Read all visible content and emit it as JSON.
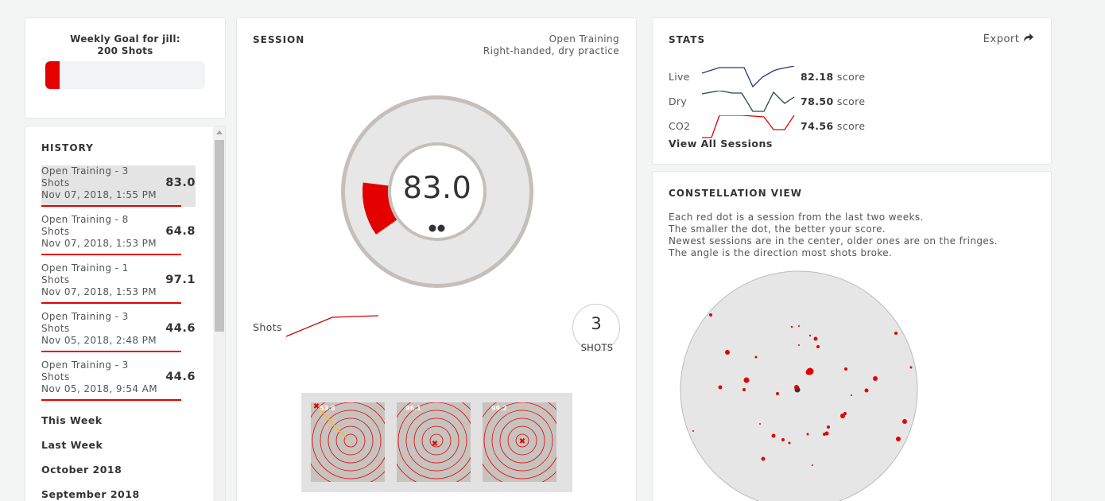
{
  "goal": {
    "title_line1": "Weekly Goal for jill:",
    "title_line2": "200 Shots",
    "progress_fraction": 0.09,
    "bar_color": "#e50000"
  },
  "history": {
    "title": "HISTORY",
    "items": [
      {
        "name": "Open Training - 3 Shots",
        "date": "Nov 07, 2018, 1:55 PM",
        "score": "83.0",
        "selected": true
      },
      {
        "name": "Open Training - 8 Shots",
        "date": "Nov 07, 2018, 1:53 PM",
        "score": "64.8",
        "selected": false
      },
      {
        "name": "Open Training - 1 Shots",
        "date": "Nov 07, 2018, 1:53 PM",
        "score": "97.1",
        "selected": false
      },
      {
        "name": "Open Training - 3 Shots",
        "date": "Nov 05, 2018, 2:48 PM",
        "score": "44.6",
        "selected": false
      },
      {
        "name": "Open Training - 3 Shots",
        "date": "Nov 05, 2018, 9:54 AM",
        "score": "44.6",
        "selected": false
      }
    ],
    "groups": [
      "This Week",
      "Last Week",
      "October 2018",
      "September 2018"
    ]
  },
  "session": {
    "title": "SESSION",
    "meta_line1": "Open Training",
    "meta_line2": "Right-handed, dry practice",
    "score": "83.0",
    "score_arc_color": "#e50000",
    "shots_label": "Shots",
    "shot_count": "3",
    "shot_count_label": "SHOTS",
    "targets": [
      {
        "score": "53.8",
        "icon": "target-icon"
      },
      {
        "score": "96.1",
        "icon": "target-icon"
      },
      {
        "score": "99.2",
        "icon": "target-icon"
      }
    ]
  },
  "stats": {
    "title": "STATS",
    "export_label": "Export",
    "export_icon": "share-arrow-icon",
    "rows": [
      {
        "label": "Live",
        "score": "82.18",
        "unit": "score",
        "color": "#1a3a8a"
      },
      {
        "label": "Dry",
        "score": "78.50",
        "unit": "score",
        "color": "#1e4d3c"
      },
      {
        "label": "CO2",
        "score": "74.56",
        "unit": "score",
        "color": "#e50000"
      }
    ],
    "view_all": "View All Sessions"
  },
  "constellation": {
    "title": "CONSTELLATION VIEW",
    "desc": [
      "Each red dot is a session from the last two weeks.",
      "The smaller the dot, the better your score.",
      "Newest sessions are in the center, older ones are on the fringes.",
      "The angle is the direction most shots broke."
    ]
  }
}
